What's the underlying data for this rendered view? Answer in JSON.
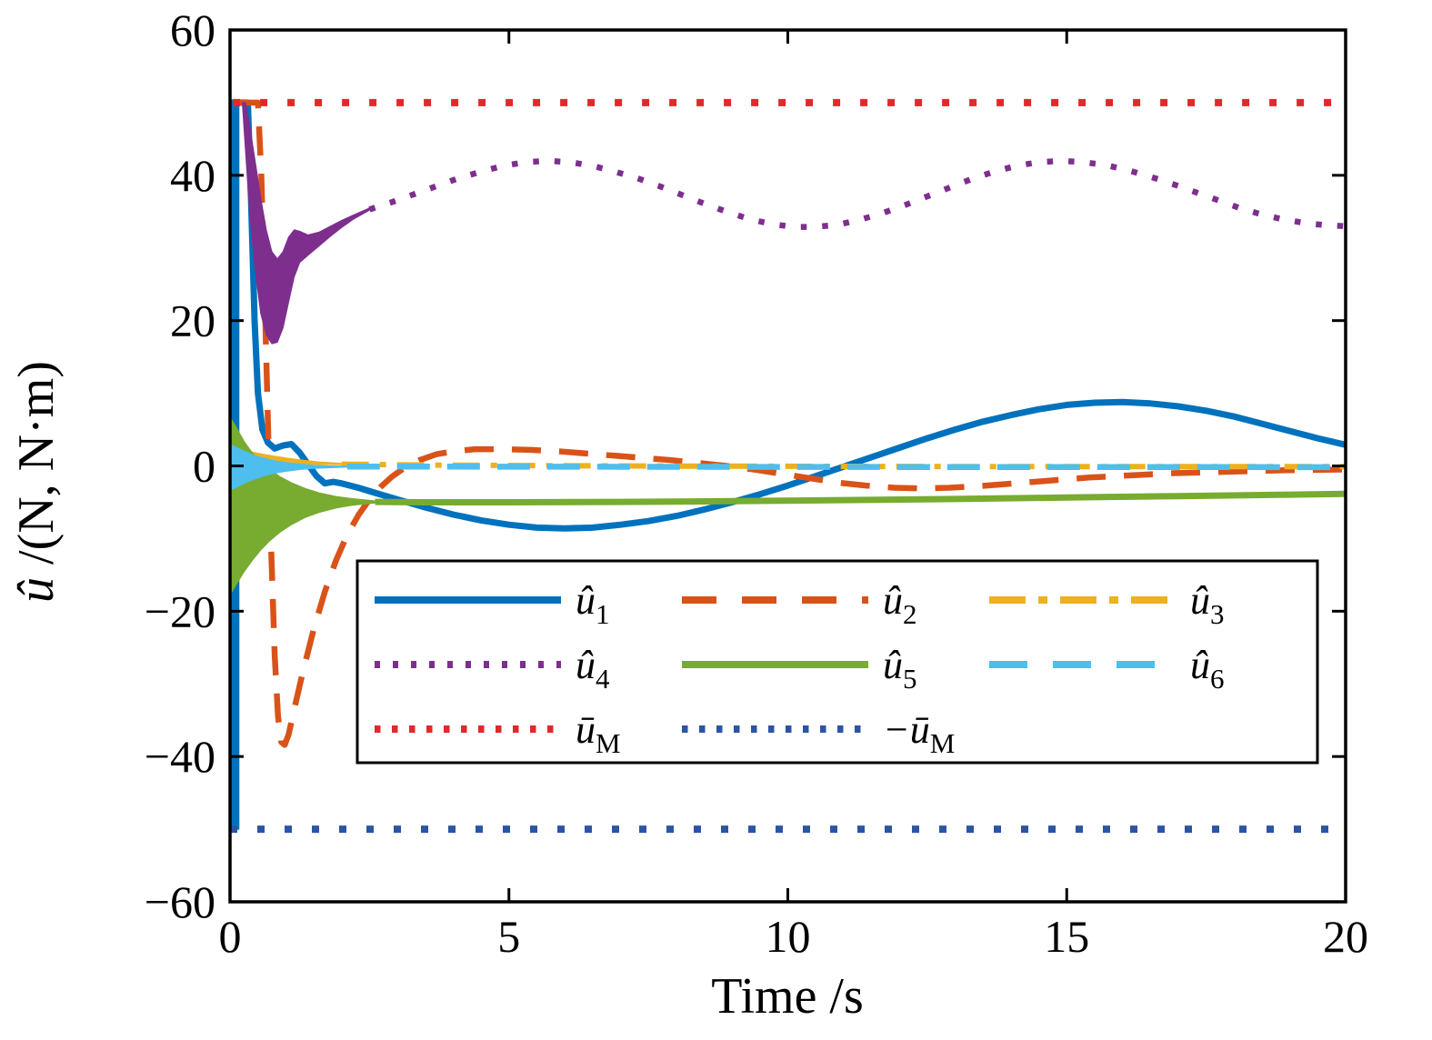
{
  "figure": {
    "background": "#ffffff",
    "xlabel": "Time /s",
    "ylabel_variable": "û",
    "ylabel_units": " /(N, N·m)"
  },
  "chart_data": {
    "type": "line",
    "title": "",
    "xlabel": "Time /s",
    "ylabel": "û /(N, N·m)",
    "xlim": [
      0,
      20
    ],
    "ylim": [
      -60,
      60
    ],
    "xticks": [
      0,
      5,
      10,
      15,
      20
    ],
    "yticks": [
      -60,
      -40,
      -20,
      0,
      20,
      40,
      60
    ],
    "grid": false,
    "legend_position": "inside-lower-center",
    "axis_color": "#000000",
    "series": [
      {
        "name": "u1",
        "label_main": "û",
        "label_sub": "1",
        "color": "#0072BD",
        "linestyle": "solid",
        "width": 7,
        "band": [
          [
            0.0,
            50,
            -50
          ],
          [
            0.16,
            50,
            -50
          ]
        ],
        "points": [
          [
            0.02,
            50
          ],
          [
            0.32,
            50
          ],
          [
            0.38,
            36
          ],
          [
            0.44,
            20
          ],
          [
            0.5,
            10
          ],
          [
            0.58,
            5
          ],
          [
            0.68,
            3.2
          ],
          [
            0.8,
            2.4
          ],
          [
            0.95,
            2.8
          ],
          [
            1.1,
            3.0
          ],
          [
            1.25,
            1.8
          ],
          [
            1.4,
            0.2
          ],
          [
            1.55,
            -1.4
          ],
          [
            1.7,
            -2.4
          ],
          [
            1.85,
            -2.2
          ],
          [
            2.0,
            -2.4
          ],
          [
            2.3,
            -3.0
          ],
          [
            2.6,
            -3.7
          ],
          [
            3.0,
            -4.6
          ],
          [
            3.5,
            -5.7
          ],
          [
            4.0,
            -6.7
          ],
          [
            4.5,
            -7.5
          ],
          [
            5.0,
            -8.1
          ],
          [
            5.5,
            -8.5
          ],
          [
            6.0,
            -8.6
          ],
          [
            6.5,
            -8.5
          ],
          [
            7.0,
            -8.1
          ],
          [
            7.5,
            -7.6
          ],
          [
            8.0,
            -6.9
          ],
          [
            8.5,
            -6.0
          ],
          [
            9.0,
            -5.0
          ],
          [
            9.5,
            -3.9
          ],
          [
            10.0,
            -2.7
          ],
          [
            10.5,
            -1.4
          ],
          [
            11.0,
            -0.1
          ],
          [
            11.5,
            1.2
          ],
          [
            12.0,
            2.5
          ],
          [
            12.5,
            3.8
          ],
          [
            13.0,
            5.0
          ],
          [
            13.5,
            6.1
          ],
          [
            14.0,
            7.0
          ],
          [
            14.5,
            7.8
          ],
          [
            15.0,
            8.4
          ],
          [
            15.5,
            8.7
          ],
          [
            16.0,
            8.8
          ],
          [
            16.5,
            8.6
          ],
          [
            17.0,
            8.2
          ],
          [
            17.5,
            7.6
          ],
          [
            18.0,
            6.8
          ],
          [
            18.5,
            5.8
          ],
          [
            19.0,
            4.8
          ],
          [
            19.5,
            3.8
          ],
          [
            20.0,
            2.9
          ]
        ]
      },
      {
        "name": "u2",
        "label_main": "û",
        "label_sub": "2",
        "color": "#D95319",
        "linestyle": "dashed",
        "width": 6.5,
        "points": [
          [
            0.08,
            50
          ],
          [
            0.5,
            50
          ],
          [
            0.56,
            40
          ],
          [
            0.62,
            24
          ],
          [
            0.68,
            6
          ],
          [
            0.74,
            -12
          ],
          [
            0.8,
            -26
          ],
          [
            0.86,
            -34.5
          ],
          [
            0.92,
            -38
          ],
          [
            0.98,
            -38.4
          ],
          [
            1.05,
            -37
          ],
          [
            1.15,
            -33.5
          ],
          [
            1.3,
            -28.5
          ],
          [
            1.5,
            -22.5
          ],
          [
            1.7,
            -17.3
          ],
          [
            1.9,
            -13
          ],
          [
            2.1,
            -9.5
          ],
          [
            2.3,
            -6.8
          ],
          [
            2.5,
            -4.6
          ],
          [
            2.7,
            -2.9
          ],
          [
            2.9,
            -1.5
          ],
          [
            3.1,
            -0.4
          ],
          [
            3.4,
            0.8
          ],
          [
            3.7,
            1.6
          ],
          [
            4.0,
            2.0
          ],
          [
            4.4,
            2.3
          ],
          [
            4.9,
            2.3
          ],
          [
            5.4,
            2.2
          ],
          [
            5.9,
            2.0
          ],
          [
            6.4,
            1.7
          ],
          [
            6.9,
            1.4
          ],
          [
            7.4,
            1.1
          ],
          [
            7.9,
            0.8
          ],
          [
            8.4,
            0.4
          ],
          [
            8.9,
            0.0
          ],
          [
            9.4,
            -0.5
          ],
          [
            9.9,
            -1.1
          ],
          [
            10.4,
            -1.7
          ],
          [
            10.9,
            -2.3
          ],
          [
            11.4,
            -2.7
          ],
          [
            11.9,
            -3.0
          ],
          [
            12.4,
            -3.1
          ],
          [
            12.9,
            -3.0
          ],
          [
            13.4,
            -2.8
          ],
          [
            13.9,
            -2.5
          ],
          [
            14.4,
            -2.2
          ],
          [
            14.9,
            -1.9
          ],
          [
            15.4,
            -1.6
          ],
          [
            15.9,
            -1.4
          ],
          [
            16.4,
            -1.2
          ],
          [
            16.9,
            -1.0
          ],
          [
            17.4,
            -0.9
          ],
          [
            17.9,
            -0.8
          ],
          [
            18.4,
            -0.7
          ],
          [
            18.9,
            -0.6
          ],
          [
            19.4,
            -0.55
          ],
          [
            20.0,
            -0.5
          ]
        ]
      },
      {
        "name": "u3",
        "label_main": "û",
        "label_sub": "3",
        "color": "#EDB120",
        "linestyle": "dashdot",
        "width": 6,
        "band": [
          [
            0.05,
            1.6,
            -1.1
          ],
          [
            0.2,
            2.0,
            -0.6
          ],
          [
            0.4,
            1.9,
            0.0
          ],
          [
            0.6,
            1.6,
            0.2
          ],
          [
            0.8,
            1.35,
            0.3
          ],
          [
            1.0,
            1.1,
            0.3
          ],
          [
            1.3,
            0.8,
            0.25
          ],
          [
            1.6,
            0.55,
            0.2
          ],
          [
            2.0,
            0.35,
            0.15
          ]
        ],
        "points": [
          [
            2.0,
            0.25
          ],
          [
            3,
            0.15
          ],
          [
            4,
            0.1
          ],
          [
            6,
            0.02
          ],
          [
            8,
            -0.02
          ],
          [
            10,
            -0.05
          ],
          [
            12,
            -0.08
          ],
          [
            14,
            -0.1
          ],
          [
            16,
            -0.1
          ],
          [
            18,
            -0.1
          ],
          [
            20,
            -0.1
          ]
        ]
      },
      {
        "name": "u4",
        "label_main": "û",
        "label_sub": "4",
        "color": "#7E2F8E",
        "linestyle": "dotted",
        "width": 6.5,
        "band": [
          [
            0.22,
            50,
            50
          ],
          [
            0.28,
            50,
            43
          ],
          [
            0.35,
            47,
            35
          ],
          [
            0.45,
            42,
            27
          ],
          [
            0.55,
            37,
            21
          ],
          [
            0.65,
            32.5,
            18
          ],
          [
            0.75,
            29.5,
            16.8
          ],
          [
            0.85,
            28.5,
            17
          ],
          [
            0.95,
            29.5,
            19
          ],
          [
            1.05,
            31.5,
            22.5
          ],
          [
            1.15,
            32.5,
            26
          ],
          [
            1.25,
            32.3,
            28
          ],
          [
            1.4,
            31.8,
            29
          ],
          [
            1.6,
            32.2,
            30.3
          ],
          [
            1.8,
            33,
            31.6
          ],
          [
            2.0,
            33.8,
            32.8
          ],
          [
            2.2,
            34.5,
            33.9
          ],
          [
            2.5,
            35.5,
            35.2
          ]
        ],
        "points": [
          [
            2.5,
            35.3
          ],
          [
            2.9,
            36.3
          ],
          [
            3.3,
            37.4
          ],
          [
            3.7,
            38.5
          ],
          [
            4.1,
            39.6
          ],
          [
            4.5,
            40.5
          ],
          [
            4.9,
            41.3
          ],
          [
            5.3,
            41.8
          ],
          [
            5.7,
            42.0
          ],
          [
            6.1,
            41.8
          ],
          [
            6.5,
            41.3
          ],
          [
            6.9,
            40.5
          ],
          [
            7.3,
            39.6
          ],
          [
            7.7,
            38.5
          ],
          [
            8.1,
            37.3
          ],
          [
            8.5,
            36.1
          ],
          [
            8.9,
            35.0
          ],
          [
            9.3,
            34.0
          ],
          [
            9.7,
            33.3
          ],
          [
            10.1,
            32.9
          ],
          [
            10.5,
            32.9
          ],
          [
            10.9,
            33.2
          ],
          [
            11.3,
            33.9
          ],
          [
            11.7,
            34.8
          ],
          [
            12.1,
            35.9
          ],
          [
            12.5,
            37.1
          ],
          [
            12.9,
            38.3
          ],
          [
            13.3,
            39.5
          ],
          [
            13.7,
            40.5
          ],
          [
            14.1,
            41.3
          ],
          [
            14.5,
            41.8
          ],
          [
            14.9,
            42.0
          ],
          [
            15.3,
            41.8
          ],
          [
            15.7,
            41.4
          ],
          [
            16.1,
            40.7
          ],
          [
            16.5,
            39.8
          ],
          [
            16.9,
            38.8
          ],
          [
            17.3,
            37.7
          ],
          [
            17.7,
            36.6
          ],
          [
            18.1,
            35.5
          ],
          [
            18.5,
            34.6
          ],
          [
            18.9,
            33.9
          ],
          [
            19.3,
            33.4
          ],
          [
            19.7,
            33.1
          ],
          [
            20.0,
            33.0
          ]
        ]
      },
      {
        "name": "u5",
        "label_main": "û",
        "label_sub": "5",
        "color": "#77AC30",
        "linestyle": "solid",
        "width": 7,
        "band": [
          [
            0.02,
            6.5,
            -17.5
          ],
          [
            0.12,
            5.2,
            -16.2
          ],
          [
            0.25,
            3.4,
            -14.6
          ],
          [
            0.4,
            1.8,
            -13.0
          ],
          [
            0.55,
            0.6,
            -11.6
          ],
          [
            0.7,
            -0.4,
            -10.4
          ],
          [
            0.9,
            -1.5,
            -9.1
          ],
          [
            1.1,
            -2.3,
            -8.1
          ],
          [
            1.35,
            -3.1,
            -7.1
          ],
          [
            1.6,
            -3.7,
            -6.4
          ],
          [
            1.9,
            -4.2,
            -5.8
          ],
          [
            2.2,
            -4.5,
            -5.4
          ],
          [
            2.6,
            -4.8,
            -5.1
          ]
        ],
        "points": [
          [
            2.6,
            -4.95
          ],
          [
            3.5,
            -5.0
          ],
          [
            5.0,
            -5.0
          ],
          [
            7.0,
            -4.95
          ],
          [
            9.0,
            -4.85
          ],
          [
            11.0,
            -4.7
          ],
          [
            13.0,
            -4.55
          ],
          [
            15.0,
            -4.35
          ],
          [
            17.0,
            -4.15
          ],
          [
            19.0,
            -3.95
          ],
          [
            20.0,
            -3.85
          ]
        ]
      },
      {
        "name": "u6",
        "label_main": "û",
        "label_sub": "6",
        "color": "#4DBEEE",
        "linestyle": "dashed2",
        "width": 6.5,
        "band": [
          [
            0.02,
            2.9,
            -3.3
          ],
          [
            0.15,
            2.4,
            -2.8
          ],
          [
            0.3,
            1.9,
            -2.2
          ],
          [
            0.45,
            1.4,
            -1.8
          ],
          [
            0.6,
            1.1,
            -1.4
          ],
          [
            0.8,
            0.7,
            -1.0
          ],
          [
            1.0,
            0.45,
            -0.75
          ],
          [
            1.25,
            0.25,
            -0.5
          ],
          [
            1.5,
            0.1,
            -0.35
          ],
          [
            1.8,
            0.0,
            -0.25
          ],
          [
            2.1,
            -0.05,
            -0.18
          ]
        ],
        "points": [
          [
            2.1,
            -0.1
          ],
          [
            4,
            -0.1
          ],
          [
            8,
            -0.12
          ],
          [
            12,
            -0.15
          ],
          [
            16,
            -0.15
          ],
          [
            20,
            -0.18
          ]
        ]
      },
      {
        "name": "uM",
        "label_main": "ū",
        "label_sub": "M",
        "color": "#E2282B",
        "linestyle": "dotted_fine",
        "width": 8,
        "points": [
          [
            0.05,
            50
          ],
          [
            20,
            50
          ]
        ]
      },
      {
        "name": "minus_uM",
        "label_main": "−ū",
        "label_sub": "M",
        "color": "#2B55A4",
        "linestyle": "dotted_fine",
        "width": 8,
        "points": [
          [
            0,
            -50
          ],
          [
            20,
            -50
          ]
        ]
      }
    ]
  },
  "legend": {
    "columns": 3,
    "entries_order": [
      "u1",
      "u2",
      "u3",
      "u4",
      "u5",
      "u6",
      "uM",
      "minus_uM"
    ]
  }
}
